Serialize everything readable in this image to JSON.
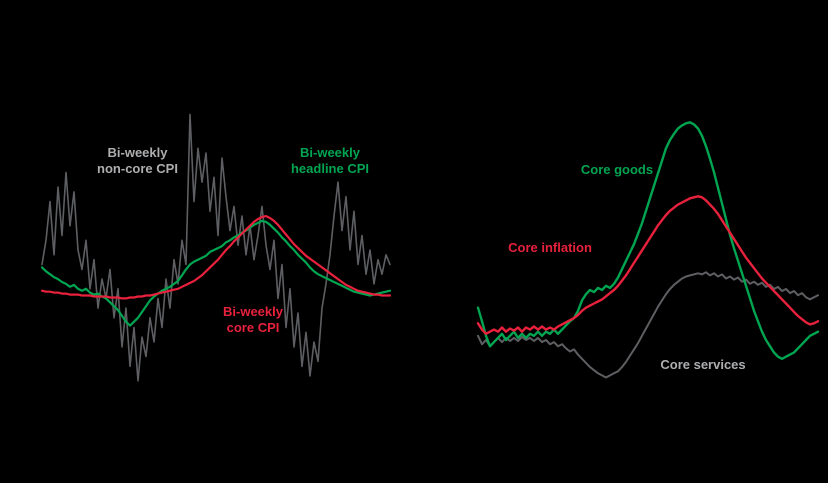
{
  "figure": {
    "background": "#000000",
    "description_visible_text_only": true
  },
  "colors": {
    "green": "#00A551",
    "red": "#E8213C",
    "grey": "#5E5F62",
    "grey_label": "#ADAEB0",
    "background": "#000000"
  },
  "chart_data": [
    {
      "id": "biweekly-cpi",
      "type": "line",
      "title": "",
      "xlabel": "",
      "ylabel": "",
      "axes_visible": false,
      "grid": false,
      "legend": "inline-labels",
      "ylim": [
        -5.5,
        10.5
      ],
      "labels": {
        "non_core": "Bi-weekly\nnon-core CPI",
        "headline": "Bi-weekly\nheadline CPI",
        "core": "Bi-weekly\ncore CPI"
      },
      "series": [
        {
          "name": "Bi-weekly non-core CPI",
          "color_key": "grey",
          "stroke_width": 1.6,
          "values": [
            1.75,
            3.0,
            5.0,
            2.25,
            5.75,
            3.25,
            6.5,
            3.75,
            5.5,
            2.5,
            1.5,
            3.0,
            0.5,
            2.0,
            -0.5,
            1.0,
            0.0,
            1.5,
            -1.0,
            0.5,
            -2.5,
            -0.5,
            -3.5,
            -1.5,
            -4.25,
            -2.0,
            -3.0,
            -1.0,
            -2.25,
            0.0,
            -1.5,
            1.0,
            -0.5,
            2.0,
            0.75,
            3.0,
            1.75,
            9.5,
            5.0,
            7.75,
            6.0,
            7.5,
            4.5,
            6.25,
            3.25,
            7.25,
            5.25,
            3.5,
            4.75,
            2.75,
            4.25,
            2.25,
            3.75,
            2.0,
            3.25,
            4.75,
            2.75,
            1.5,
            3.0,
            0.0,
            1.75,
            -1.5,
            0.5,
            -2.5,
            -0.75,
            -3.5,
            -1.75,
            -4.0,
            -2.25,
            -3.25,
            -0.5,
            0.75,
            2.25,
            4.25,
            6.0,
            3.5,
            5.25,
            2.5,
            4.5,
            1.75,
            3.25,
            1.25,
            2.5,
            0.75,
            2.0,
            1.25,
            2.25,
            1.75
          ]
        },
        {
          "name": "Bi-weekly headline CPI",
          "color_key": "green",
          "stroke_width": 2.2,
          "values": [
            1.6,
            1.4,
            1.25,
            1.1,
            1.0,
            0.85,
            0.75,
            0.6,
            0.7,
            0.5,
            0.4,
            0.5,
            0.3,
            0.2,
            0.25,
            0.1,
            0.0,
            -0.2,
            -0.4,
            -0.6,
            -0.9,
            -1.2,
            -1.4,
            -1.2,
            -1.0,
            -0.7,
            -0.4,
            -0.1,
            0.1,
            0.25,
            0.4,
            0.5,
            0.6,
            0.75,
            0.9,
            1.2,
            1.5,
            1.75,
            1.9,
            2.0,
            2.1,
            2.2,
            2.4,
            2.5,
            2.6,
            2.7,
            2.9,
            3.0,
            3.15,
            3.25,
            3.4,
            3.5,
            3.65,
            3.8,
            3.9,
            4.0,
            3.95,
            3.8,
            3.6,
            3.4,
            3.15,
            2.95,
            2.7,
            2.5,
            2.25,
            2.05,
            1.85,
            1.6,
            1.4,
            1.25,
            1.15,
            1.05,
            0.95,
            0.85,
            0.75,
            0.65,
            0.55,
            0.45,
            0.35,
            0.3,
            0.25,
            0.2,
            0.15,
            0.2,
            0.25,
            0.3,
            0.35,
            0.4
          ]
        },
        {
          "name": "Bi-weekly core CPI",
          "color_key": "red",
          "stroke_width": 2.2,
          "values": [
            0.4,
            0.35,
            0.35,
            0.3,
            0.3,
            0.25,
            0.25,
            0.2,
            0.2,
            0.2,
            0.15,
            0.15,
            0.15,
            0.1,
            0.1,
            0.1,
            0.1,
            0.05,
            0.05,
            0.05,
            0.0,
            0.0,
            0.05,
            0.05,
            0.1,
            0.1,
            0.15,
            0.15,
            0.2,
            0.25,
            0.3,
            0.35,
            0.4,
            0.45,
            0.5,
            0.6,
            0.7,
            0.8,
            0.9,
            1.05,
            1.2,
            1.4,
            1.6,
            1.8,
            2.0,
            2.25,
            2.5,
            2.7,
            2.95,
            3.15,
            3.35,
            3.55,
            3.75,
            3.95,
            4.1,
            4.2,
            4.25,
            4.15,
            4.0,
            3.8,
            3.55,
            3.3,
            3.05,
            2.8,
            2.6,
            2.4,
            2.2,
            2.05,
            1.9,
            1.75,
            1.6,
            1.45,
            1.3,
            1.15,
            1.0,
            0.85,
            0.7,
            0.6,
            0.5,
            0.4,
            0.35,
            0.3,
            0.25,
            0.2,
            0.2,
            0.15,
            0.15,
            0.15
          ]
        }
      ]
    },
    {
      "id": "core-inflation-breakdown",
      "type": "line",
      "title": "",
      "xlabel": "",
      "ylabel": "",
      "axes_visible": false,
      "grid": false,
      "legend": "inline-labels",
      "ylim": [
        -4.2,
        9.0
      ],
      "labels": {
        "goods": "Core goods",
        "inflation": "Core inflation",
        "services": "Core services"
      },
      "series": [
        {
          "name": "Core services",
          "color_key": "grey",
          "stroke_width": 2.0,
          "values": [
            -1.6,
            -2.0,
            -1.8,
            -2.1,
            -1.9,
            -1.7,
            -1.9,
            -1.7,
            -1.85,
            -1.7,
            -1.85,
            -1.65,
            -1.8,
            -1.7,
            -1.85,
            -1.7,
            -1.9,
            -1.8,
            -2.0,
            -1.9,
            -2.1,
            -2.0,
            -2.2,
            -2.35,
            -2.25,
            -2.5,
            -2.7,
            -2.9,
            -3.1,
            -3.25,
            -3.4,
            -3.5,
            -3.6,
            -3.5,
            -3.4,
            -3.3,
            -3.1,
            -2.85,
            -2.55,
            -2.25,
            -1.95,
            -1.6,
            -1.25,
            -0.9,
            -0.55,
            -0.2,
            0.1,
            0.4,
            0.65,
            0.85,
            1.0,
            1.15,
            1.25,
            1.3,
            1.35,
            1.4,
            1.35,
            1.45,
            1.3,
            1.4,
            1.25,
            1.35,
            1.15,
            1.25,
            1.1,
            1.2,
            1.0,
            1.1,
            0.9,
            1.0,
            0.85,
            0.95,
            0.75,
            0.85,
            0.65,
            0.75,
            0.55,
            0.65,
            0.45,
            0.55,
            0.35,
            0.45,
            0.25,
            0.15,
            0.25,
            0.35
          ]
        },
        {
          "name": "Core goods",
          "color_key": "green",
          "stroke_width": 2.4,
          "values": [
            -0.25,
            -0.9,
            -1.6,
            -2.1,
            -1.9,
            -1.7,
            -1.5,
            -1.8,
            -1.6,
            -1.4,
            -1.7,
            -1.5,
            -1.7,
            -1.5,
            -1.6,
            -1.4,
            -1.6,
            -1.4,
            -1.5,
            -1.3,
            -1.5,
            -1.3,
            -1.1,
            -0.9,
            -0.75,
            -0.4,
            0.1,
            0.4,
            0.6,
            0.5,
            0.7,
            0.6,
            0.8,
            0.7,
            0.9,
            1.2,
            1.6,
            2.0,
            2.4,
            2.8,
            3.3,
            3.8,
            4.4,
            5.0,
            5.6,
            6.2,
            6.8,
            7.4,
            7.8,
            8.1,
            8.35,
            8.5,
            8.6,
            8.65,
            8.55,
            8.35,
            8.0,
            7.5,
            6.9,
            6.25,
            5.5,
            4.75,
            4.0,
            3.25,
            2.6,
            2.0,
            1.4,
            0.8,
            0.2,
            -0.4,
            -0.9,
            -1.4,
            -1.8,
            -2.1,
            -2.4,
            -2.6,
            -2.7,
            -2.6,
            -2.5,
            -2.4,
            -2.2,
            -2.0,
            -1.8,
            -1.6,
            -1.5,
            -1.4
          ]
        },
        {
          "name": "Core inflation",
          "color_key": "red",
          "stroke_width": 2.4,
          "values": [
            -1.0,
            -1.3,
            -1.5,
            -1.4,
            -1.3,
            -1.4,
            -1.2,
            -1.4,
            -1.25,
            -1.35,
            -1.2,
            -1.4,
            -1.2,
            -1.3,
            -1.15,
            -1.3,
            -1.15,
            -1.3,
            -1.2,
            -1.3,
            -1.15,
            -1.05,
            -0.95,
            -0.85,
            -0.75,
            -0.6,
            -0.4,
            -0.25,
            -0.15,
            -0.05,
            0.05,
            0.15,
            0.3,
            0.45,
            0.6,
            0.8,
            1.05,
            1.3,
            1.6,
            1.9,
            2.2,
            2.5,
            2.8,
            3.1,
            3.4,
            3.7,
            3.95,
            4.2,
            4.4,
            4.55,
            4.7,
            4.8,
            4.9,
            5.0,
            5.05,
            5.1,
            5.05,
            4.9,
            4.7,
            4.5,
            4.25,
            3.95,
            3.65,
            3.35,
            3.05,
            2.75,
            2.45,
            2.15,
            1.9,
            1.65,
            1.4,
            1.15,
            0.95,
            0.75,
            0.55,
            0.35,
            0.15,
            -0.05,
            -0.25,
            -0.45,
            -0.65,
            -0.8,
            -0.95,
            -1.05,
            -1.0,
            -0.9
          ]
        }
      ]
    }
  ]
}
